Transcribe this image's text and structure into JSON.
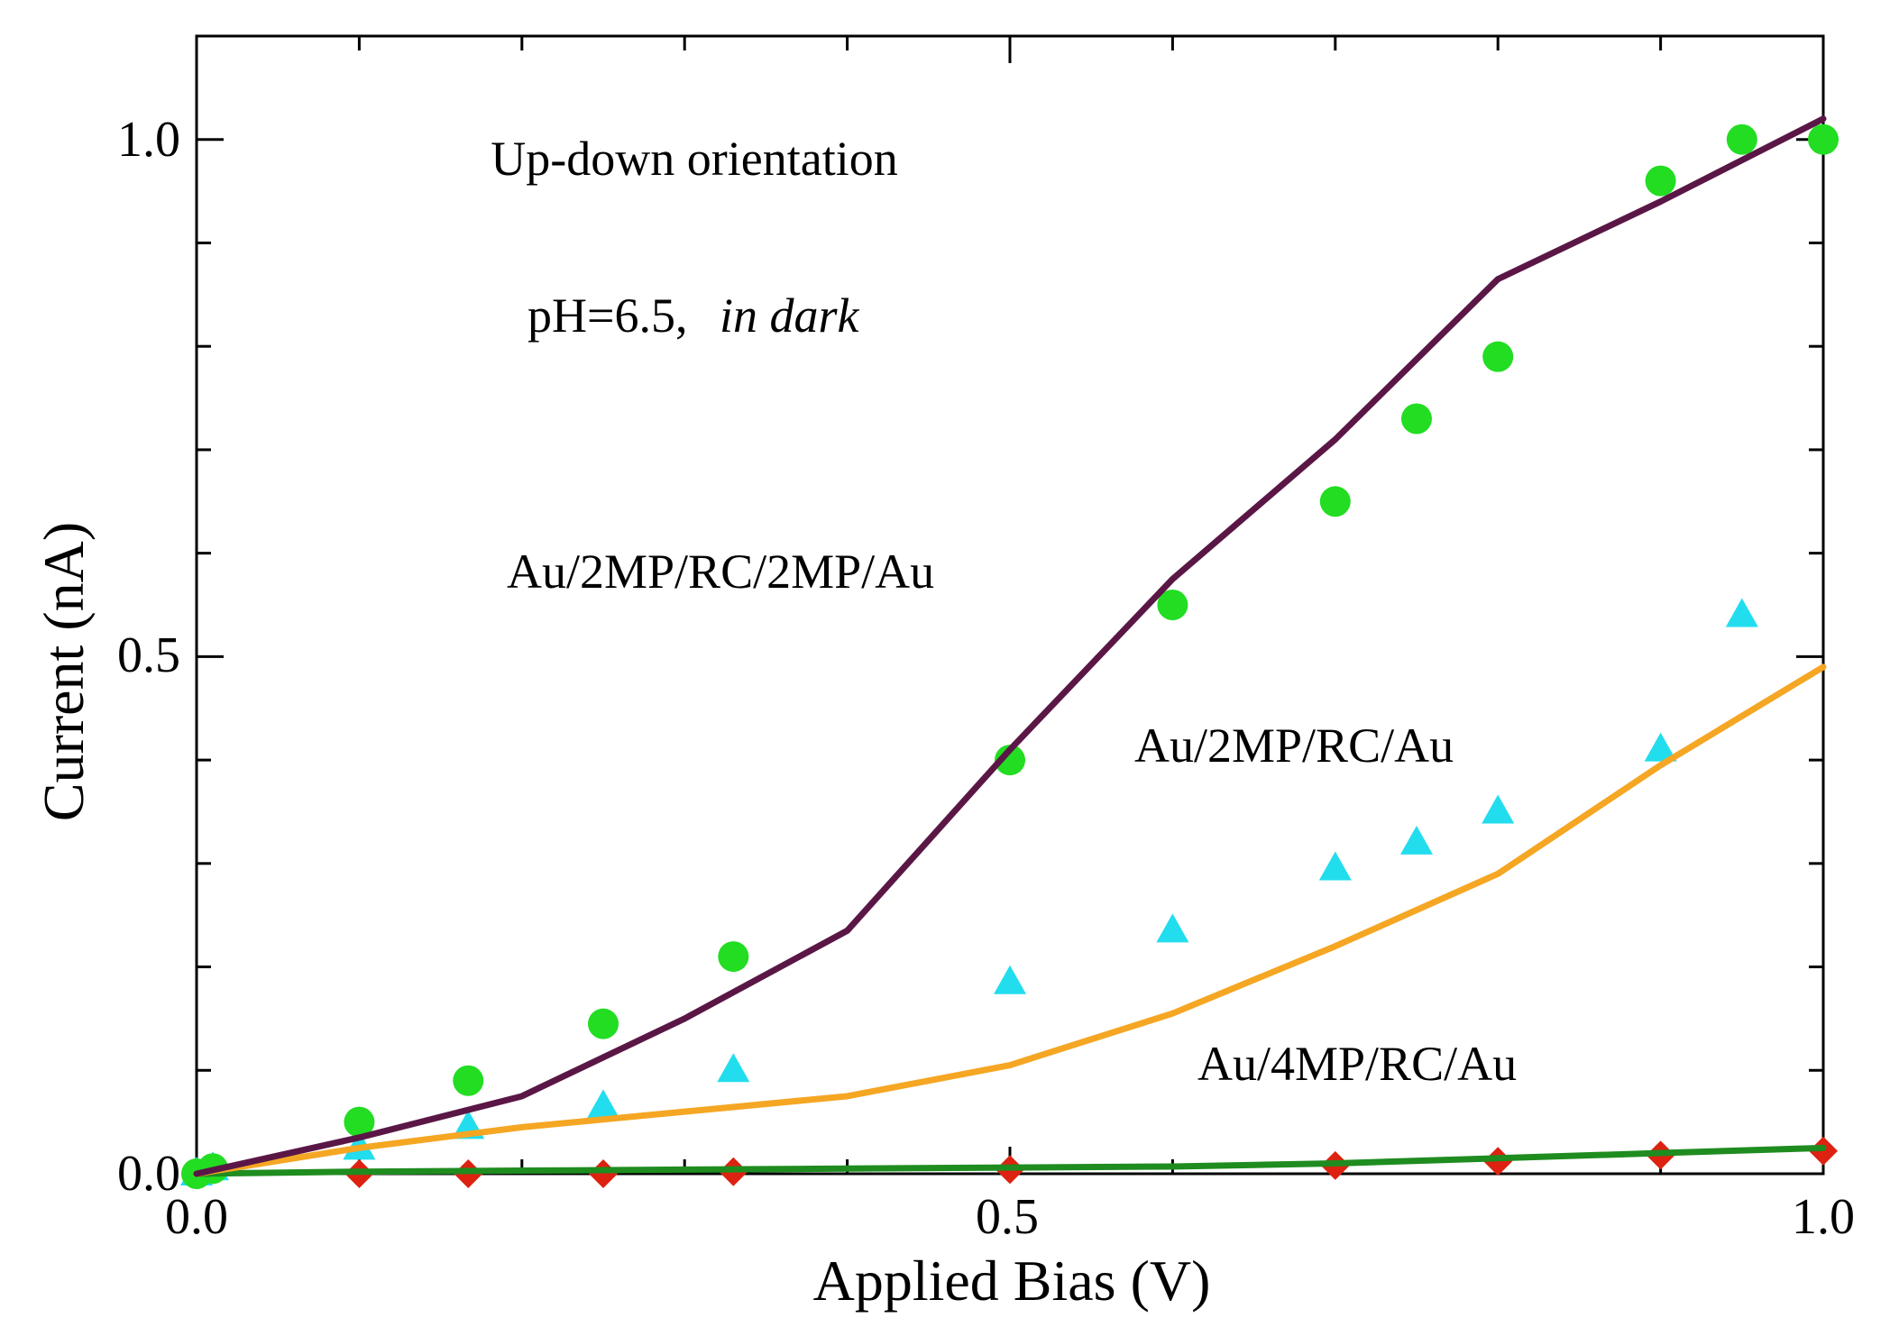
{
  "chart_data": {
    "type": "scatter",
    "title": "",
    "xlabel": "Applied Bias (V)",
    "ylabel": "Current (nA)",
    "xlim": [
      0.0,
      1.0
    ],
    "ylim": [
      0.0,
      1.1
    ],
    "xticks": [
      {
        "value": 0.0,
        "label": "0.0"
      },
      {
        "value": 0.5,
        "label": "0.5"
      },
      {
        "value": 1.0,
        "label": "1.0"
      }
    ],
    "yticks": [
      {
        "value": 0.0,
        "label": "0.0"
      },
      {
        "value": 0.5,
        "label": "0.5"
      },
      {
        "value": 1.0,
        "label": "1.0"
      }
    ],
    "minor_tick_step": 0.1,
    "annotations": {
      "orientation": "Up-down orientation",
      "condition_ph": "pH=6.5,",
      "condition_dark": "in dark"
    },
    "series": [
      {
        "name": "Au/2MP/RC/2MP/Au",
        "label_color": "#5a1746",
        "marker_color": "#22dd22",
        "marker": "circle",
        "line_color": "#5a1746",
        "line_x": [
          0.0,
          0.1,
          0.2,
          0.3,
          0.4,
          0.5,
          0.6,
          0.7,
          0.8,
          0.9,
          1.0
        ],
        "line_y": [
          0.0,
          0.035,
          0.075,
          0.15,
          0.235,
          0.41,
          0.575,
          0.71,
          0.865,
          0.94,
          1.02
        ],
        "points_x": [
          0.0,
          0.01,
          0.1,
          0.167,
          0.25,
          0.33,
          0.5,
          0.6,
          0.7,
          0.75,
          0.8,
          0.9,
          0.95,
          1.0
        ],
        "points_y": [
          0.0,
          0.005,
          0.05,
          0.09,
          0.145,
          0.21,
          0.4,
          0.55,
          0.65,
          0.73,
          0.79,
          0.96,
          1.0,
          1.0
        ]
      },
      {
        "name": "Au/2MP/RC/Au",
        "label_color": "#f5a623",
        "marker_color": "#22ddee",
        "marker": "triangle",
        "line_color": "#f5a623",
        "line_x": [
          0.0,
          0.1,
          0.2,
          0.3,
          0.4,
          0.5,
          0.6,
          0.7,
          0.8,
          0.9,
          1.0
        ],
        "line_y": [
          0.0,
          0.025,
          0.045,
          0.06,
          0.075,
          0.105,
          0.155,
          0.22,
          0.29,
          0.395,
          0.49
        ],
        "points_x": [
          0.0,
          0.01,
          0.1,
          0.167,
          0.25,
          0.33,
          0.5,
          0.6,
          0.7,
          0.75,
          0.8,
          0.9,
          0.95
        ],
        "points_y": [
          0.0,
          0.005,
          0.025,
          0.045,
          0.065,
          0.1,
          0.185,
          0.235,
          0.295,
          0.32,
          0.35,
          0.41,
          0.54
        ]
      },
      {
        "name": "Au/4MP/RC/Au",
        "label_color": "#1f8c1f",
        "marker_color": "#dd2211",
        "marker": "diamond",
        "line_color": "#1f8c1f",
        "line_x": [
          0.0,
          0.1,
          0.2,
          0.3,
          0.4,
          0.5,
          0.6,
          0.7,
          0.8,
          0.9,
          1.0
        ],
        "line_y": [
          0.0,
          0.002,
          0.003,
          0.004,
          0.005,
          0.006,
          0.007,
          0.01,
          0.015,
          0.02,
          0.025
        ],
        "points_x": [
          0.0,
          0.1,
          0.167,
          0.25,
          0.33,
          0.5,
          0.7,
          0.8,
          0.9,
          1.0
        ],
        "points_y": [
          0.0,
          0.0,
          0.0,
          0.0,
          0.002,
          0.004,
          0.008,
          0.012,
          0.018,
          0.022
        ]
      }
    ]
  }
}
